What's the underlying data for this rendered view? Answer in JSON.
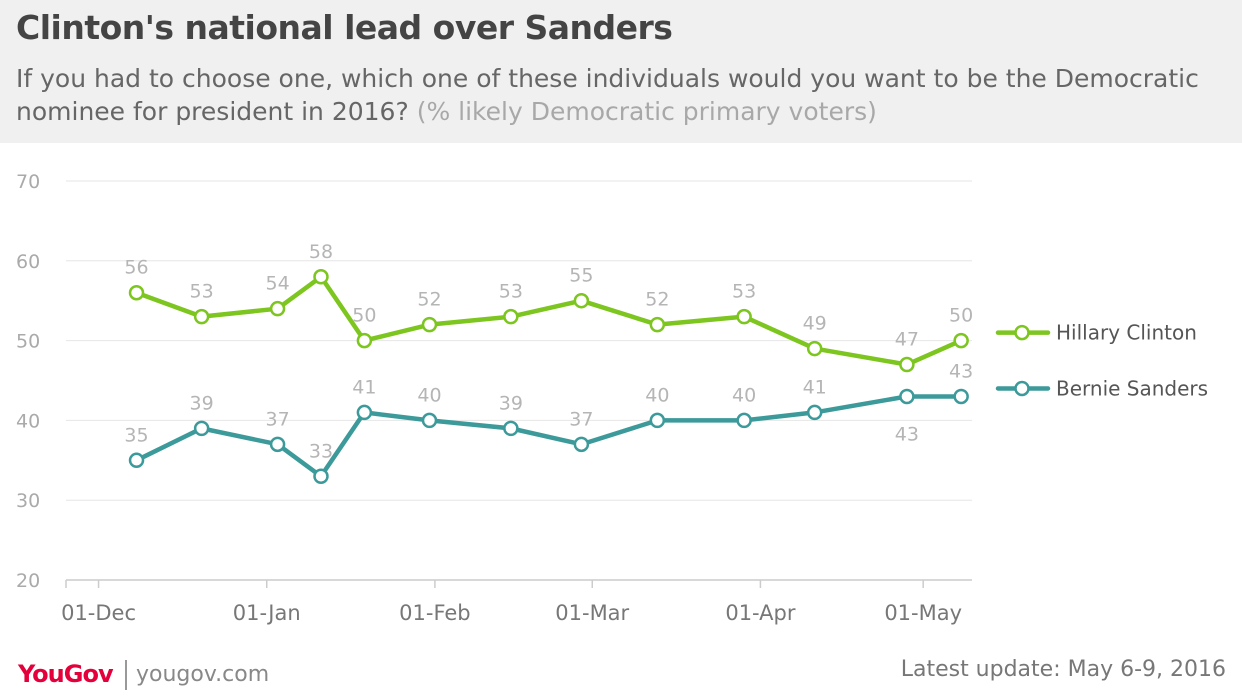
{
  "header": {
    "title": "Clinton's national lead over Sanders",
    "question": "If you had to choose one, which one of these individuals would you want to be the Democratic nominee for president in 2016?",
    "question_note": "(% likely Democratic primary voters)"
  },
  "footer": {
    "brand": "YouGov",
    "website": "yougov.com",
    "update": "Latest update: May 6-9, 2016"
  },
  "chart_data": {
    "type": "line",
    "title": "Clinton's national lead over Sanders",
    "xlabel": "",
    "ylabel": "",
    "ylim": [
      20,
      70
    ],
    "yticks": [
      20,
      30,
      40,
      50,
      60,
      70
    ],
    "x_tick_labels": [
      "01-Dec",
      "01-Jan",
      "01-Feb",
      "01-Mar",
      "01-Apr",
      "01-May"
    ],
    "x_tick_dates": [
      "2015-12-01",
      "2016-01-01",
      "2016-02-01",
      "2016-03-01",
      "2016-04-01",
      "2016-05-01"
    ],
    "xlim": [
      "2015-11-25",
      "2016-05-10"
    ],
    "grid": true,
    "legend_position": "right",
    "x": [
      "2015-12-08",
      "2015-12-20",
      "2016-01-03",
      "2016-01-11",
      "2016-01-19",
      "2016-01-31",
      "2016-02-15",
      "2016-02-28",
      "2016-03-13",
      "2016-03-29",
      "2016-04-11",
      "2016-04-28",
      "2016-05-08"
    ],
    "series": [
      {
        "name": "Hillary Clinton",
        "color": "#7dc51f",
        "values": [
          56,
          53,
          54,
          58,
          50,
          52,
          53,
          55,
          52,
          53,
          49,
          47,
          50
        ],
        "label_side": "above"
      },
      {
        "name": "Bernie Sanders",
        "color": "#3d9a9a",
        "values": [
          35,
          39,
          37,
          33,
          41,
          40,
          39,
          37,
          40,
          40,
          41,
          43,
          43
        ],
        "label_side": "above",
        "label_below_indices": [
          11
        ]
      }
    ]
  }
}
